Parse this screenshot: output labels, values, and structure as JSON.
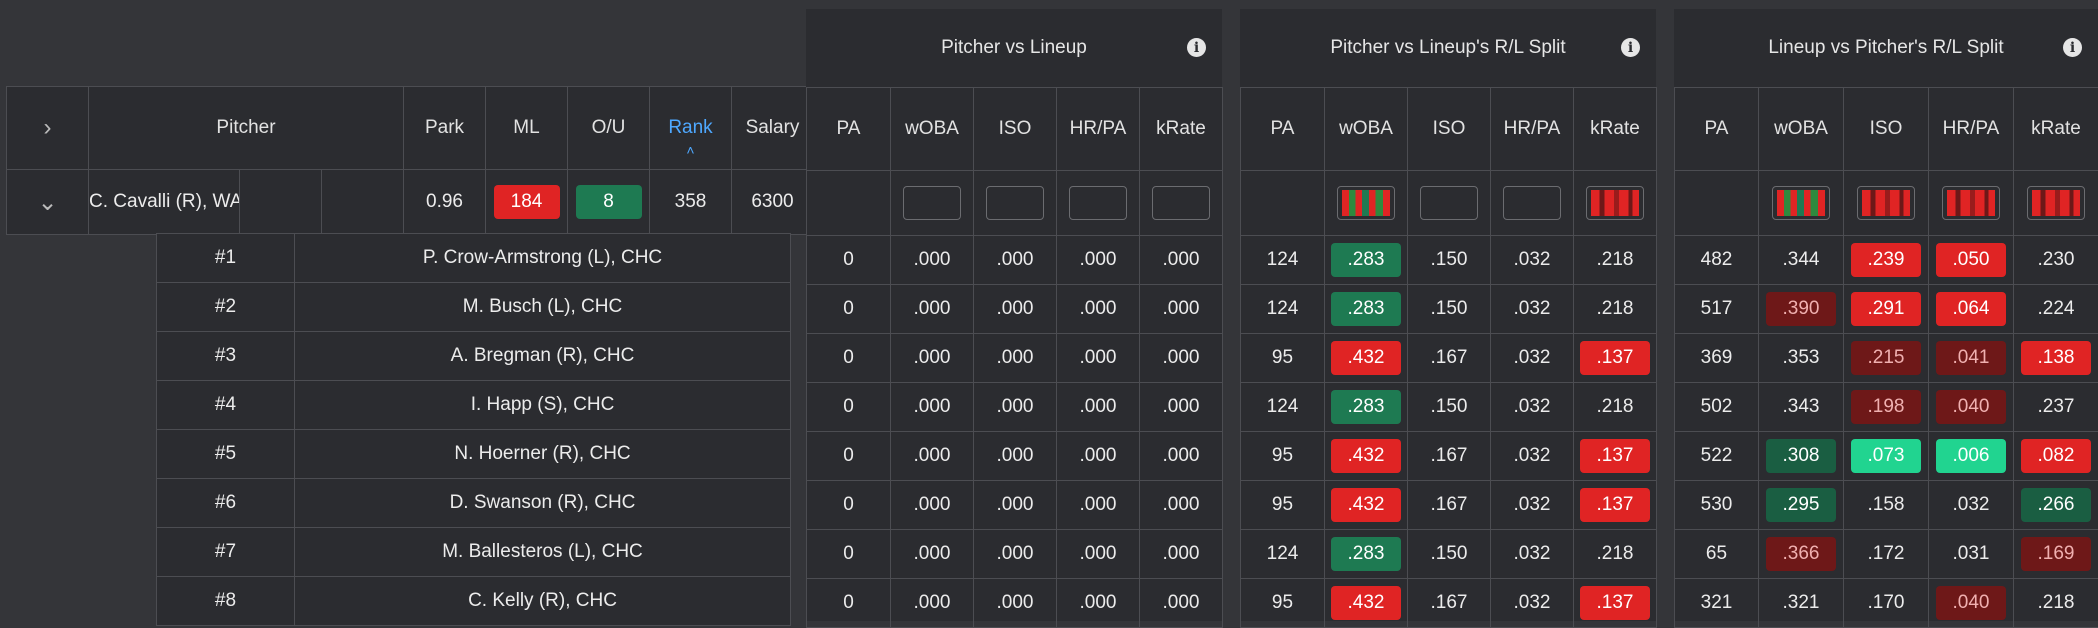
{
  "pitcher_table": {
    "headers": {
      "pitcher": "Pitcher",
      "park": "Park",
      "ml": "ML",
      "ou": "O/U",
      "rank": "Rank",
      "salary": "Salary"
    },
    "row": {
      "name": "C. Cavalli (R), WAS",
      "park": "0.96",
      "ml": "184",
      "ou": "8",
      "rank": "358",
      "salary": "6300"
    },
    "expand_icon": "chevron-right-icon",
    "collapse_icon": "chevron-down-icon"
  },
  "panels": {
    "pvl": {
      "title": "Pitcher vs Lineup"
    },
    "pvlrl": {
      "title": "Pitcher vs Lineup's R/L Split"
    },
    "lvprl": {
      "title": "Lineup vs Pitcher's R/L Split"
    }
  },
  "stat_headers": [
    "PA",
    "wOBA",
    "ISO",
    "HR/PA",
    "kRate"
  ],
  "colors": {
    "red": "#e02424",
    "dark_red": "#6e1818",
    "green": "#1e7a52",
    "light_green": "#21d490"
  },
  "lineup": [
    {
      "slot": "#1",
      "name": "P. Crow-Armstrong (L), CHC",
      "pvl": [
        "0",
        ".000",
        ".000",
        ".000",
        ".000"
      ],
      "pvlrl": [
        "124",
        ".283",
        ".150",
        ".032",
        ".218"
      ],
      "lvprl": [
        "482",
        ".344",
        ".239",
        ".050",
        ".230"
      ]
    },
    {
      "slot": "#2",
      "name": "M. Busch (L), CHC",
      "pvl": [
        "0",
        ".000",
        ".000",
        ".000",
        ".000"
      ],
      "pvlrl": [
        "124",
        ".283",
        ".150",
        ".032",
        ".218"
      ],
      "lvprl": [
        "517",
        ".390",
        ".291",
        ".064",
        ".224"
      ]
    },
    {
      "slot": "#3",
      "name": "A. Bregman (R), CHC",
      "pvl": [
        "0",
        ".000",
        ".000",
        ".000",
        ".000"
      ],
      "pvlrl": [
        "95",
        ".432",
        ".167",
        ".032",
        ".137"
      ],
      "lvprl": [
        "369",
        ".353",
        ".215",
        ".041",
        ".138"
      ]
    },
    {
      "slot": "#4",
      "name": "I. Happ (S), CHC",
      "pvl": [
        "0",
        ".000",
        ".000",
        ".000",
        ".000"
      ],
      "pvlrl": [
        "124",
        ".283",
        ".150",
        ".032",
        ".218"
      ],
      "lvprl": [
        "502",
        ".343",
        ".198",
        ".040",
        ".237"
      ]
    },
    {
      "slot": "#5",
      "name": "N. Hoerner (R), CHC",
      "pvl": [
        "0",
        ".000",
        ".000",
        ".000",
        ".000"
      ],
      "pvlrl": [
        "95",
        ".432",
        ".167",
        ".032",
        ".137"
      ],
      "lvprl": [
        "522",
        ".308",
        ".073",
        ".006",
        ".082"
      ]
    },
    {
      "slot": "#6",
      "name": "D. Swanson (R), CHC",
      "pvl": [
        "0",
        ".000",
        ".000",
        ".000",
        ".000"
      ],
      "pvlrl": [
        "95",
        ".432",
        ".167",
        ".032",
        ".137"
      ],
      "lvprl": [
        "530",
        ".295",
        ".158",
        ".032",
        ".266"
      ]
    },
    {
      "slot": "#7",
      "name": "M. Ballesteros (L), CHC",
      "pvl": [
        "0",
        ".000",
        ".000",
        ".000",
        ".000"
      ],
      "pvlrl": [
        "124",
        ".283",
        ".150",
        ".032",
        ".218"
      ],
      "lvprl": [
        "65",
        ".366",
        ".172",
        ".031",
        ".169"
      ]
    },
    {
      "slot": "#8",
      "name": "C. Kelly (R), CHC",
      "pvl": [
        "0",
        ".000",
        ".000",
        ".000",
        ".000"
      ],
      "pvlrl": [
        "95",
        ".432",
        ".167",
        ".032",
        ".137"
      ],
      "lvprl": [
        "321",
        ".321",
        ".170",
        ".040",
        ".218"
      ]
    }
  ],
  "highlights": {
    "pvlrl": [
      [
        null,
        "green",
        null,
        null,
        null
      ],
      [
        null,
        "green",
        null,
        null,
        null
      ],
      [
        null,
        "red",
        null,
        null,
        "red"
      ],
      [
        null,
        "green",
        null,
        null,
        null
      ],
      [
        null,
        "red",
        null,
        null,
        "red"
      ],
      [
        null,
        "red",
        null,
        null,
        "red"
      ],
      [
        null,
        "green",
        null,
        null,
        null
      ],
      [
        null,
        "red",
        null,
        null,
        "red"
      ]
    ],
    "lvprl": [
      [
        null,
        null,
        "red",
        "red",
        null
      ],
      [
        null,
        "dred",
        "red",
        "red",
        null
      ],
      [
        null,
        null,
        "dred",
        "dred",
        "red"
      ],
      [
        null,
        null,
        "dred",
        "dred",
        null
      ],
      [
        null,
        "dgreen",
        "lgreen",
        "lgreen",
        "red"
      ],
      [
        null,
        "dgreen",
        null,
        null,
        "dgreen"
      ],
      [
        null,
        "dred",
        null,
        null,
        "dred"
      ],
      [
        null,
        null,
        null,
        "dred",
        null
      ]
    ]
  }
}
